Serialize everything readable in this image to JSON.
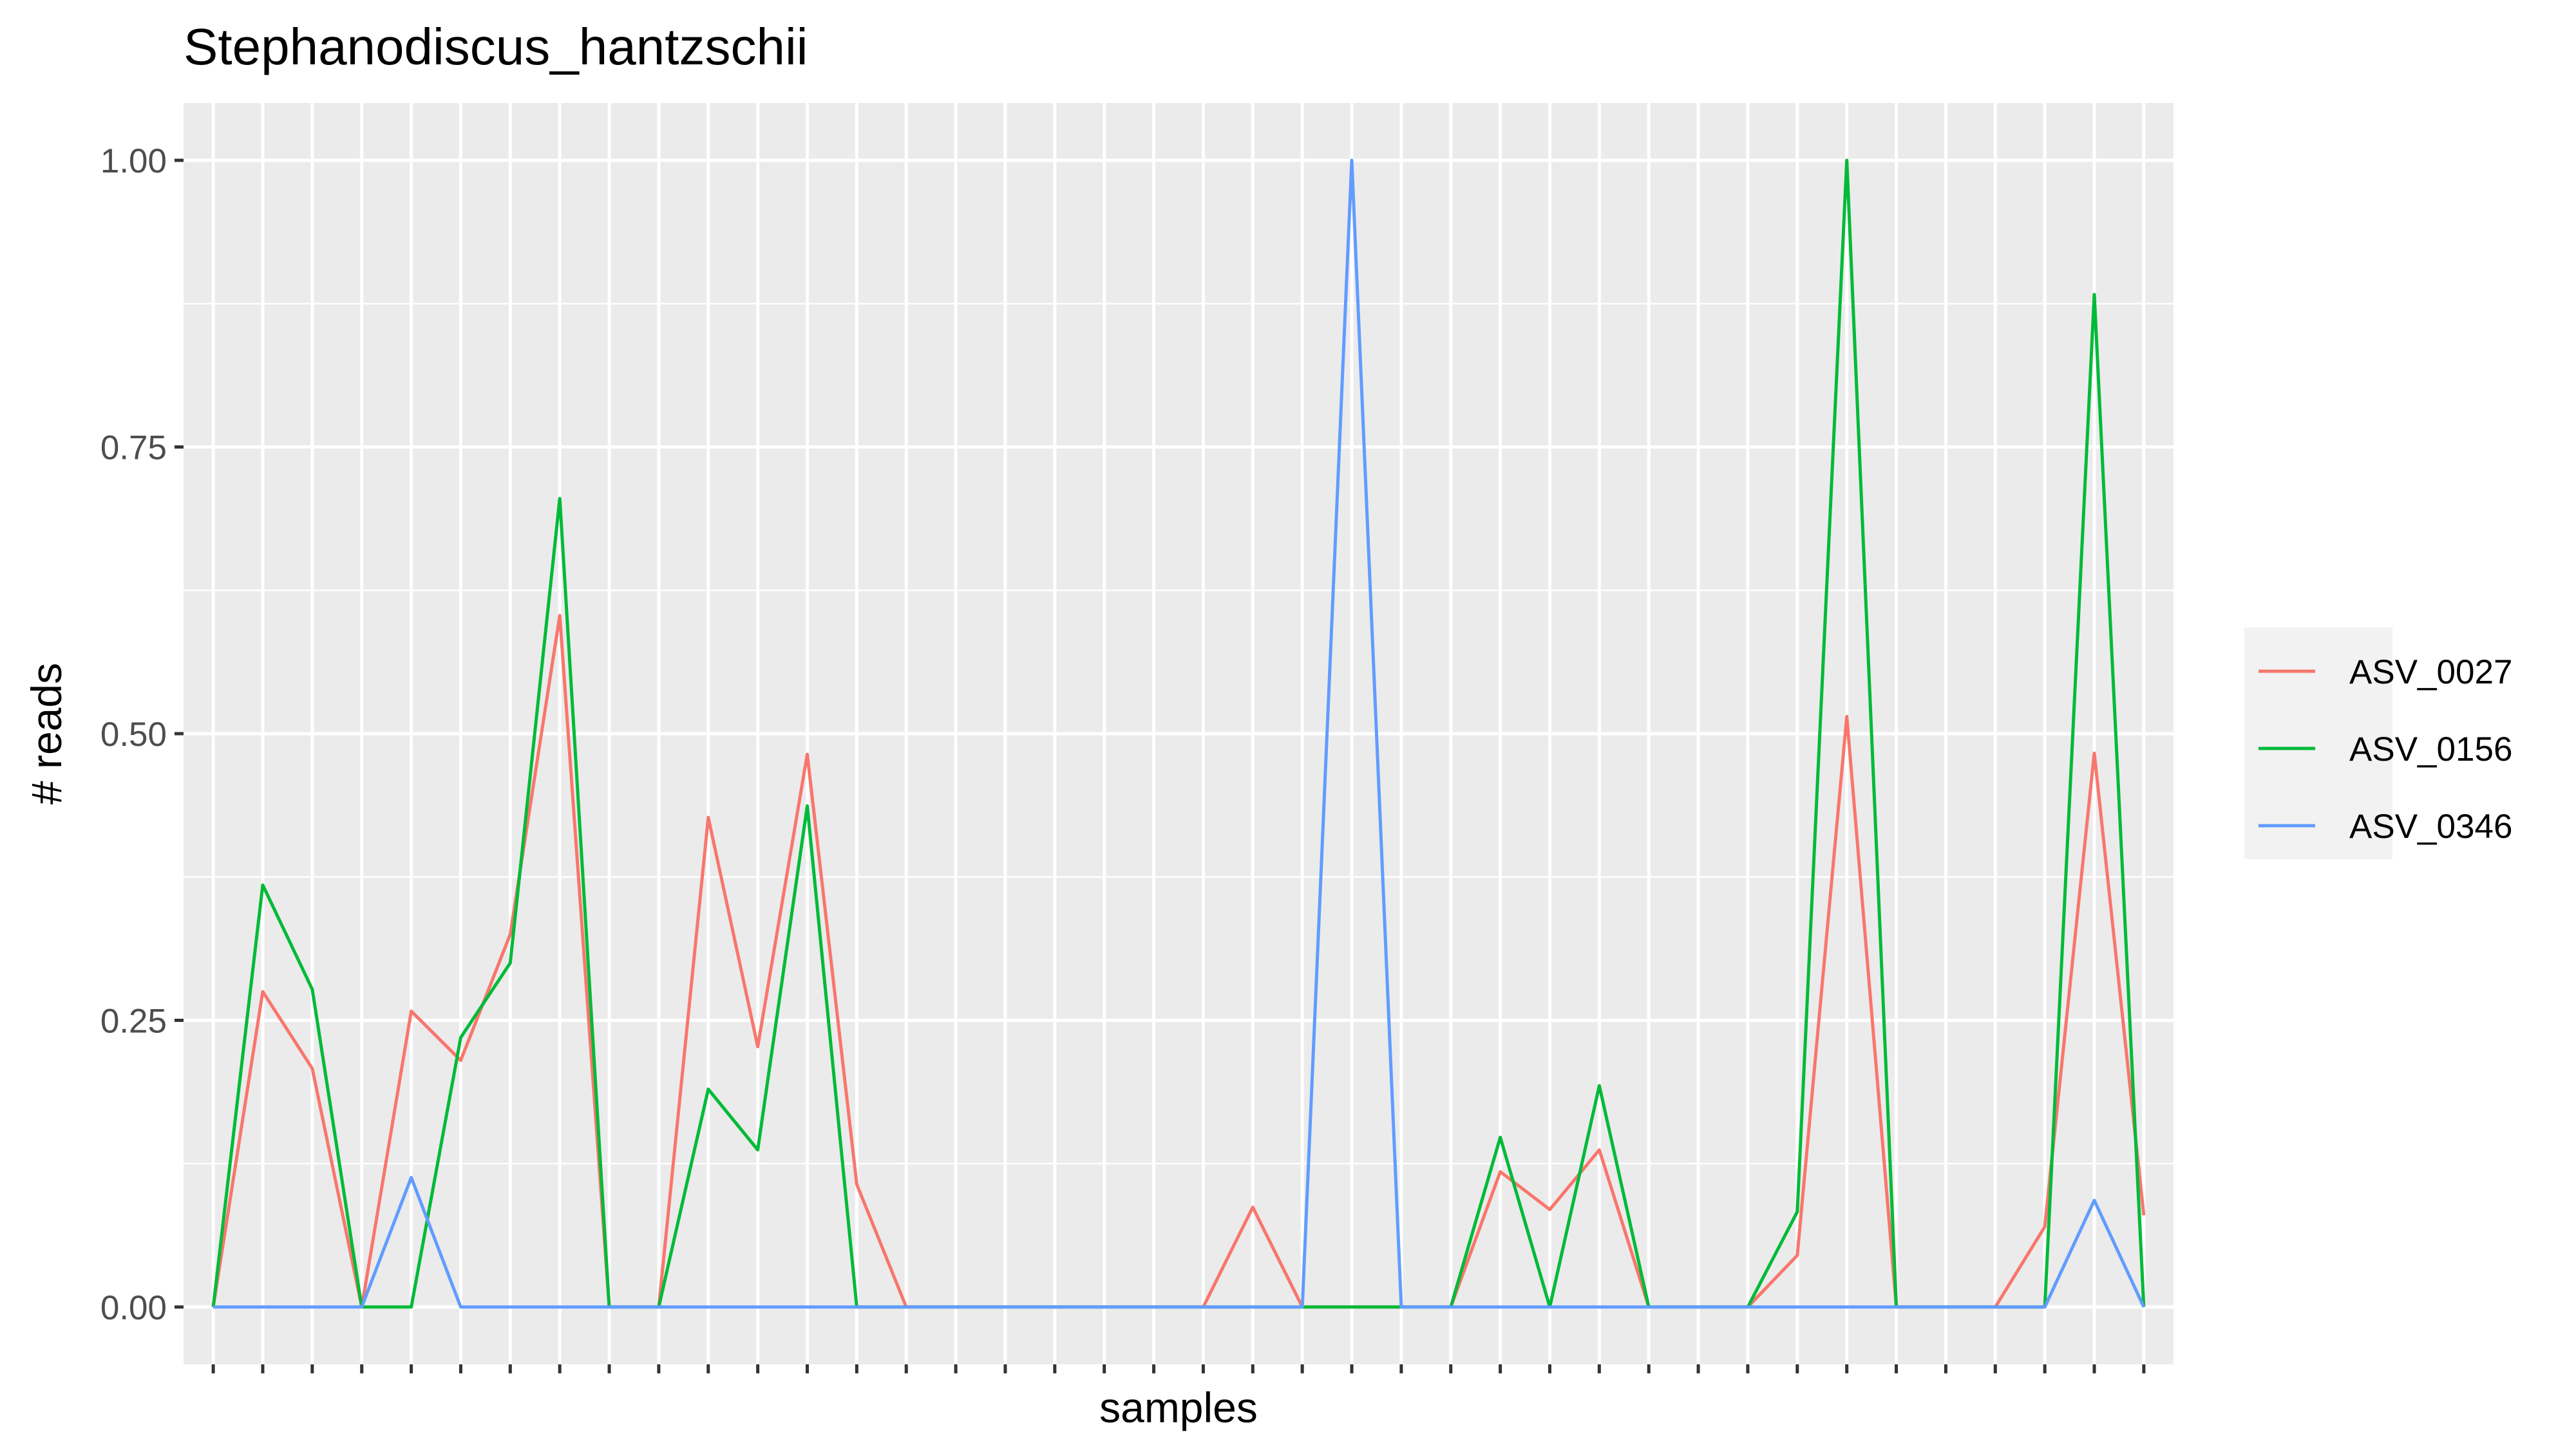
{
  "chart_data": {
    "type": "line",
    "title": "Stephanodiscus_hantzschii",
    "xlabel": "samples",
    "ylabel": "# reads",
    "ylim": [
      -0.05,
      1.05
    ],
    "yticks": [
      0,
      0.25,
      0.5,
      0.75,
      1
    ],
    "ytick_labels": [
      "0.00",
      "0.25",
      "0.50",
      "0.75",
      "1.00"
    ],
    "x": [
      1,
      2,
      3,
      4,
      5,
      6,
      7,
      8,
      9,
      10,
      11,
      12,
      13,
      14,
      15,
      16,
      17,
      18,
      19,
      20,
      21,
      22,
      23,
      24,
      25,
      26,
      27,
      28,
      29,
      30,
      31,
      32,
      33,
      34,
      35,
      36,
      37,
      38,
      39,
      40
    ],
    "xlim": [
      0.4,
      40.6
    ],
    "grid": true,
    "legend_position": "right",
    "series": [
      {
        "name": "ASV_0027",
        "color": "#F8766D",
        "values": [
          0,
          0.275,
          0.208,
          0,
          0.258,
          0.215,
          0.325,
          0.603,
          0,
          0,
          0.427,
          0.227,
          0.482,
          0.107,
          0,
          0,
          0,
          0,
          0,
          0,
          0,
          0.087,
          0,
          0,
          0,
          0,
          0.118,
          0.085,
          0.137,
          0,
          0,
          0,
          0.045,
          0.515,
          0,
          0,
          0,
          0.07,
          0.483,
          0.08
        ]
      },
      {
        "name": "ASV_0156",
        "color": "#00BA38",
        "values": [
          0,
          0.368,
          0.277,
          0,
          0,
          0.235,
          0.3,
          0.705,
          0,
          0,
          0.19,
          0.137,
          0.437,
          0,
          0,
          0,
          0,
          0,
          0,
          0,
          0,
          0,
          0,
          0,
          0,
          0,
          0.148,
          0,
          0.193,
          0,
          0,
          0,
          0.083,
          1.0,
          0,
          0,
          0,
          0,
          0.883,
          0
        ]
      },
      {
        "name": "ASV_0346",
        "color": "#619CFF",
        "values": [
          0,
          0,
          0,
          0,
          0.113,
          0,
          0,
          0,
          0,
          0,
          0,
          0,
          0,
          0,
          0,
          0,
          0,
          0,
          0,
          0,
          0,
          0,
          0,
          1.0,
          0,
          0,
          0,
          0,
          0,
          0,
          0,
          0,
          0,
          0,
          0,
          0,
          0,
          0,
          0.093,
          0
        ]
      }
    ]
  }
}
